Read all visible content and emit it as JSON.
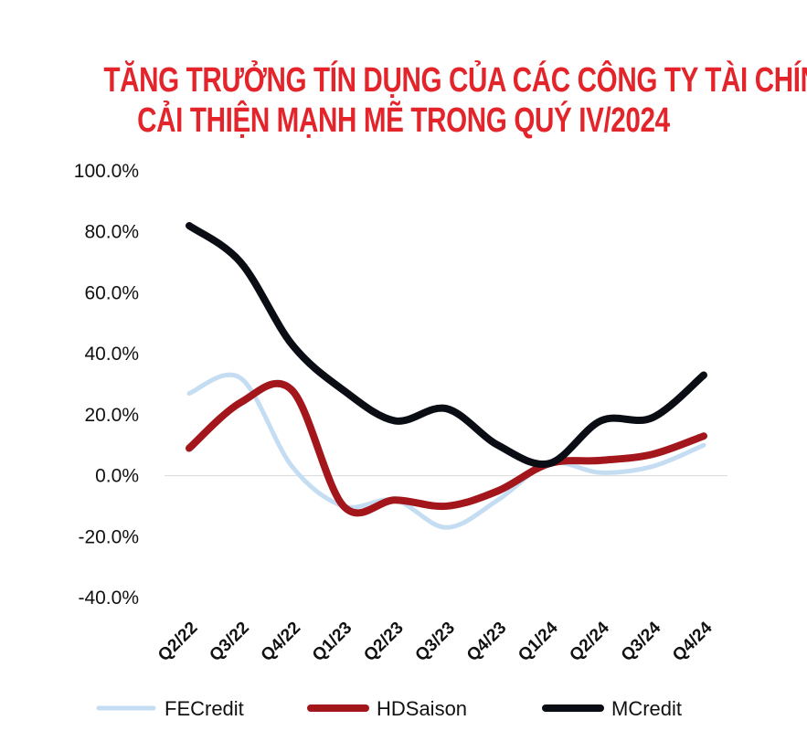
{
  "chart_data": {
    "type": "line",
    "title": [
      "TĂNG TRƯỞNG TÍN DỤNG CỦA CÁC CÔNG TY TÀI CHÍNH",
      "CẢI THIỆN MẠNH MẼ TRONG QUÝ IV/2024"
    ],
    "categories": [
      "Q2/22",
      "Q3/22",
      "Q4/22",
      "Q1/23",
      "Q2/23",
      "Q3/23",
      "Q4/23",
      "Q1/24",
      "Q2/24",
      "Q3/24",
      "Q4/24"
    ],
    "ylim": [
      -40,
      100
    ],
    "yticks": [
      "100.0%",
      "80.0%",
      "60.0%",
      "40.0%",
      "20.0%",
      "0.0%",
      "-20.0%",
      "-40.0%"
    ],
    "ytick_values": [
      100,
      80,
      60,
      40,
      20,
      0,
      -20,
      -40
    ],
    "zero_line": true,
    "legend_position": "bottom",
    "series": [
      {
        "name": "FECredit",
        "color": "#c5ddf2",
        "values": [
          27,
          32,
          3,
          -10,
          -8,
          -17,
          -8,
          4,
          1,
          3,
          10
        ]
      },
      {
        "name": "HDSaison",
        "color": "#a3161b",
        "values": [
          9,
          24,
          28,
          -10,
          -8,
          -10,
          -5,
          4,
          5,
          7,
          13
        ]
      },
      {
        "name": "MCredit",
        "color": "#0b0d14",
        "values": [
          82,
          70,
          43,
          28,
          18,
          22,
          10,
          4,
          18,
          19,
          33
        ]
      }
    ]
  }
}
